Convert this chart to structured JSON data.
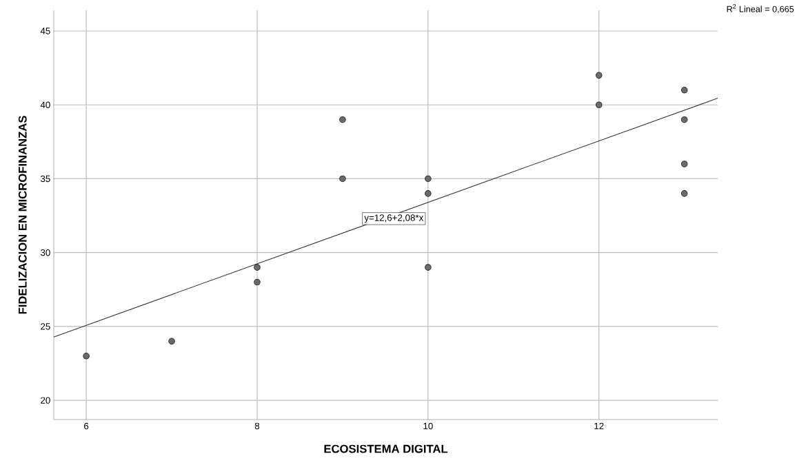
{
  "chart_data": {
    "type": "scatter",
    "xlabel": "ECOSISTEMA DIGITAL",
    "ylabel": "FIDELIZACION EN MICROFINANZAS",
    "xlim": [
      5.62,
      13.39
    ],
    "ylim": [
      18.7,
      46.4
    ],
    "xticks": [
      6,
      8,
      10,
      12
    ],
    "yticks": [
      20,
      25,
      30,
      35,
      40,
      45
    ],
    "grid": true,
    "series": [
      {
        "marker": "circle",
        "color": "#6b6b6b",
        "x": [
          6,
          7,
          8,
          8,
          9,
          9,
          10,
          10,
          10,
          12,
          12,
          13,
          13,
          13,
          13
        ],
        "values": [
          23,
          24,
          29,
          28,
          39,
          35,
          35,
          34,
          29,
          42,
          40,
          41,
          39,
          36,
          34
        ]
      },
      {
        "type": "line",
        "marker": "none",
        "color": "#333333",
        "x": [
          5.62,
          13.39
        ],
        "values": [
          24.29,
          40.45
        ]
      }
    ],
    "annotations": [
      {
        "text": "y=12,6+2,08*x",
        "x": 9.6,
        "y": 32.3
      },
      "R$^{2}$ Lineal = 0,665"
    ]
  }
}
